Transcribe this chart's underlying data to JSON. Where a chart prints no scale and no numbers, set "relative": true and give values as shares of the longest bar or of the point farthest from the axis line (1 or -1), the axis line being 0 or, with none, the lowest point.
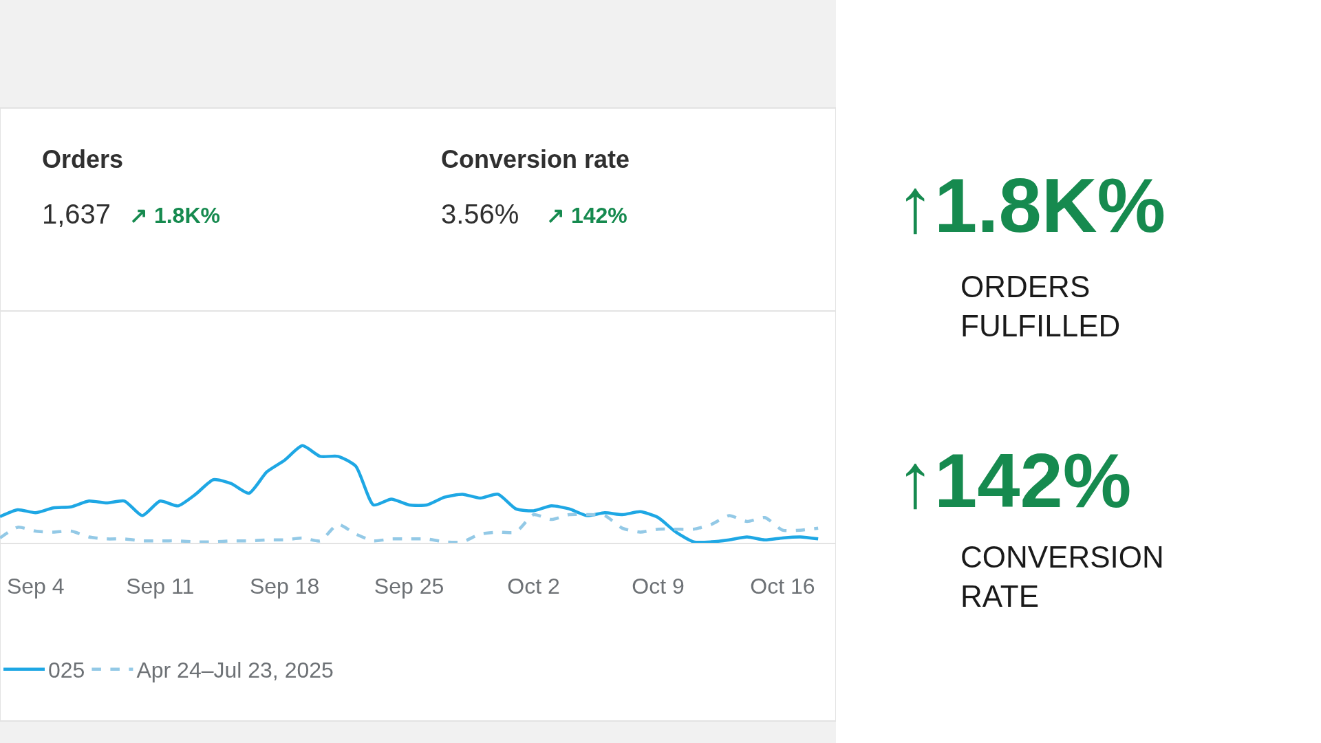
{
  "chart_data": {
    "type": "line",
    "relative": true,
    "annotations": [
      "Orders",
      "1,637",
      "↗ 1.8K%",
      "Conversion rate",
      "3.56%",
      "↗ 142%",
      "↑1.8K%",
      "ORDERS FULFILLED",
      "↑142%",
      "CONVERSION RATE"
    ],
    "x": [
      "--09-02",
      "--09-03",
      "--09-04",
      "--09-05",
      "--09-06",
      "--09-07",
      "--09-08",
      "--09-09",
      "--09-10",
      "--09-11",
      "--09-12",
      "--09-13",
      "--09-14",
      "--09-15",
      "--09-16",
      "--09-17",
      "--09-18",
      "--09-19",
      "--09-20",
      "--09-21",
      "--09-22",
      "--09-23",
      "--09-24",
      "--09-25",
      "--09-26",
      "--09-27",
      "--09-28",
      "--09-29",
      "--09-30",
      "--10-01",
      "--10-02",
      "--10-03",
      "--10-04",
      "--10-05",
      "--10-06",
      "--10-07",
      "--10-08",
      "--10-09",
      "--10-10",
      "--10-11",
      "--10-12",
      "--10-13",
      "--10-14",
      "--10-15",
      "--10-16",
      "--10-17",
      "--10-18"
    ],
    "xlim": [
      "--09-02",
      "--10-19"
    ],
    "xticks": [
      {
        "value": "--09-04",
        "label": "Sep 4"
      },
      {
        "value": "--09-11",
        "label": "Sep 11"
      },
      {
        "value": "--09-18",
        "label": "Sep 18"
      },
      {
        "value": "--09-25",
        "label": "Sep 25"
      },
      {
        "value": "--10-02",
        "label": "Oct 2"
      },
      {
        "value": "--10-09",
        "label": "Oct 9"
      },
      {
        "value": "--10-16",
        "label": "Oct 16"
      }
    ],
    "series": [
      {
        "name": "025",
        "color": "#1ea7e4",
        "line_style": "solid",
        "values": [
          0.27,
          0.34,
          0.31,
          0.36,
          0.37,
          0.43,
          0.41,
          0.43,
          0.28,
          0.43,
          0.38,
          0.5,
          0.65,
          0.61,
          0.51,
          0.73,
          0.85,
          1.0,
          0.89,
          0.89,
          0.79,
          0.39,
          0.45,
          0.39,
          0.39,
          0.47,
          0.5,
          0.46,
          0.5,
          0.35,
          0.33,
          0.38,
          0.35,
          0.28,
          0.31,
          0.29,
          0.32,
          0.26,
          0.11,
          0.01,
          0.01,
          0.03,
          0.06,
          0.03,
          0.05,
          0.06,
          0.04
        ]
      },
      {
        "name": "Apr 24–Jul 23, 2025",
        "color": "#93c9e6",
        "line_style": "dashed",
        "values": [
          0.05,
          0.16,
          0.12,
          0.11,
          0.12,
          0.06,
          0.04,
          0.04,
          0.02,
          0.02,
          0.02,
          0.01,
          0.01,
          0.02,
          0.02,
          0.03,
          0.03,
          0.05,
          0.02,
          0.19,
          0.09,
          0.02,
          0.04,
          0.04,
          0.04,
          0.01,
          0.01,
          0.09,
          0.11,
          0.11,
          0.29,
          0.24,
          0.29,
          0.29,
          0.28,
          0.15,
          0.11,
          0.14,
          0.14,
          0.14,
          0.19,
          0.28,
          0.22,
          0.26,
          0.13,
          0.13,
          0.15
        ]
      }
    ],
    "marker": "none",
    "legend": "bottom"
  }
}
